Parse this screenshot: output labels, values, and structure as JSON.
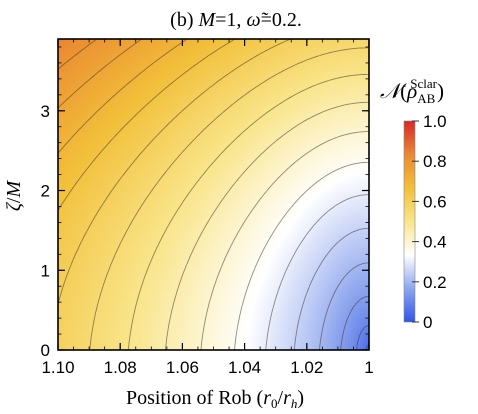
{
  "chart_data": {
    "type": "heatmap",
    "title": "(b) M=1, ω̃=0.2.",
    "title_parts": {
      "prefix": "(b) ",
      "m": "M",
      "m_val": "=1, ",
      "omega": "ω̃",
      "omega_val": "=0.2."
    },
    "xlabel": "Position of Rob (r0/rh)",
    "xlabel_parts": {
      "text": "Position of Rob (",
      "r": "r",
      "r_sub": "0",
      "slash": "/",
      "rh": "r",
      "rh_sub": "h",
      "close": ")"
    },
    "ylabel": "ζ/M",
    "ylabel_parts": {
      "zeta": "ζ",
      "slash": "/",
      "m": "M"
    },
    "colorbar_label": "N(ρAB^Sclar)",
    "colorbar_parts": {
      "n": "𝒩",
      "open": "(",
      "rho": "ρ",
      "sub": "AB",
      "sup": "Sclar",
      "close": ")"
    },
    "xlim": [
      1.1,
      1.0
    ],
    "xaxis_reversed": true,
    "ylim": [
      0,
      3.9
    ],
    "x_ticks": [
      "1.10",
      "1.08",
      "1.06",
      "1.04",
      "1.02",
      "1"
    ],
    "x_tick_values": [
      1.1,
      1.08,
      1.06,
      1.04,
      1.02,
      1.0
    ],
    "y_ticks": [
      "0",
      "1",
      "2",
      "3"
    ],
    "y_tick_values": [
      0,
      1,
      2,
      3
    ],
    "colorbar_ticks": [
      "0",
      "0.2",
      "0.4",
      "0.6",
      "0.8",
      "1.0"
    ],
    "colorbar_tick_values": [
      0,
      0.2,
      0.4,
      0.6,
      0.8,
      1.0
    ],
    "colorbar_range": [
      0,
      1
    ],
    "colormap": [
      "#2f55e8",
      "#8ea6ee",
      "#ffffff",
      "#f9e58a",
      "#f2c03a",
      "#ea8a32",
      "#d7282a"
    ],
    "contour_levels": [
      0.05,
      0.1,
      0.15,
      0.2,
      0.25,
      0.3,
      0.35,
      0.4,
      0.45,
      0.5,
      0.55,
      0.6,
      0.65,
      0.7,
      0.75,
      0.8,
      0.85,
      0.9,
      0.95
    ],
    "grid": false
  }
}
